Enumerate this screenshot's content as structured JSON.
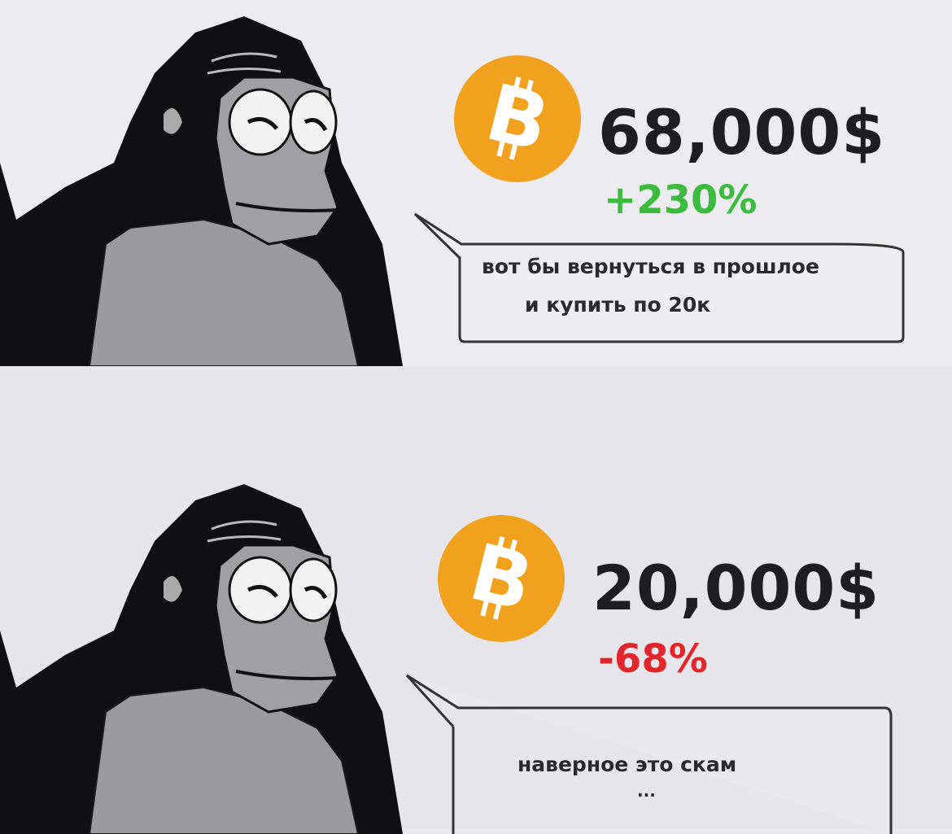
{
  "panels": [
    {
      "coin_icon": "bitcoin-icon",
      "price": "68,000$",
      "change": "+230%",
      "change_color": "#3dbb3f",
      "speech": [
        "вот бы вернуться в прошлое",
        "и купить по 20к"
      ]
    },
    {
      "coin_icon": "bitcoin-icon",
      "price": "20,000$",
      "change": "-68%",
      "change_color": "#e0252b",
      "speech": [
        "наверное это скам",
        "..."
      ]
    }
  ],
  "colors": {
    "bitcoin": "#f2a11f"
  }
}
